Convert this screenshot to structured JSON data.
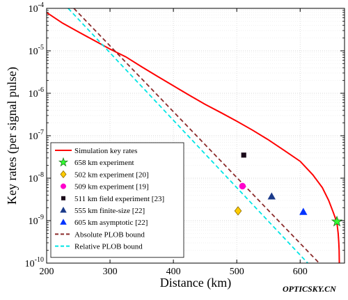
{
  "chart_data": {
    "type": "line",
    "title": "",
    "xlabel": "Distance (km)",
    "ylabel": "Key rates (per signal pulse)",
    "xlim": [
      200,
      670
    ],
    "xticks": [
      200,
      300,
      400,
      500,
      600
    ],
    "ylim_exponents": [
      -10,
      -4
    ],
    "y_log_base": 10,
    "y_scale": "log",
    "grid": true,
    "legend_position": "bottom-left",
    "series": [
      {
        "name": "Simulation key rates",
        "kind": "line",
        "color": "#ff0000",
        "style": "solid",
        "x": [
          200,
          225,
          250,
          275,
          300,
          325,
          350,
          375,
          400,
          425,
          450,
          475,
          500,
          525,
          550,
          575,
          600,
          620,
          635,
          645,
          652,
          656,
          658,
          660,
          661,
          661.5,
          661.8
        ],
        "y": [
          8e-05,
          4.5e-05,
          2.8e-05,
          1.75e-05,
          1.1e-05,
          7.2e-06,
          4.2e-06,
          2.5e-06,
          1.5e-06,
          9e-07,
          5.5e-07,
          3.5e-07,
          2.2e-07,
          1.35e-07,
          8e-08,
          4.5e-08,
          2.5e-08,
          1.2e-08,
          6e-09,
          3e-09,
          1.6e-09,
          1.1e-09,
          9e-10,
          5e-10,
          3e-10,
          2e-10,
          1e-10
        ]
      },
      {
        "name": "658 km experiment",
        "kind": "point",
        "marker": "star",
        "color": "#33ff33",
        "x": [
          658
        ],
        "y": [
          9.5e-10
        ]
      },
      {
        "name": "502 km experiment [20]",
        "kind": "point",
        "marker": "diamond",
        "color": "#ffcc00",
        "x": [
          502
        ],
        "y": [
          1.7e-09
        ]
      },
      {
        "name": "509 km experiment [19]",
        "kind": "point",
        "marker": "circle",
        "color": "#ff00cc",
        "x": [
          509
        ],
        "y": [
          6.5e-09
        ]
      },
      {
        "name": "511 km field experiment [23]",
        "kind": "point",
        "marker": "square",
        "color": "#1a0a1a",
        "x": [
          511
        ],
        "y": [
          3.5e-08
        ]
      },
      {
        "name": "555 km finite-size [22]",
        "kind": "point",
        "marker": "triangle",
        "color": "#1a3a8a",
        "x": [
          555
        ],
        "y": [
          3.7e-09
        ]
      },
      {
        "name": "605 km asymptotic [22]",
        "kind": "point",
        "marker": "triangle",
        "color": "#0033ff",
        "x": [
          605
        ],
        "y": [
          1.6e-09
        ]
      },
      {
        "name": "Absolute PLOB bound",
        "kind": "line",
        "color": "#8b2a2a",
        "style": "dashed",
        "x": [
          243,
          630
        ],
        "y": [
          0.0001,
          1e-10
        ]
      },
      {
        "name": "Relative PLOB bound",
        "kind": "line",
        "color": "#00e5e5",
        "style": "dashed",
        "x": [
          234,
          612
        ],
        "y": [
          0.0001,
          1e-10
        ]
      }
    ]
  },
  "watermark": "OPTICSKY.CN"
}
